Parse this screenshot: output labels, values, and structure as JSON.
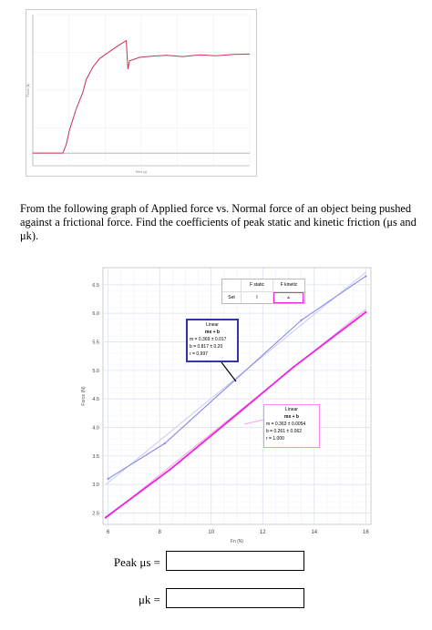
{
  "top_chart": {
    "x_axis_label": "Time (s)",
    "y_axis_label": "Force (N)"
  },
  "question": {
    "text": "From the following graph of Applied force vs. Normal force of an object being pushed against a frictional force.  Find the coefficients of peak static and kinetic friction (μs and μk)."
  },
  "legend": {
    "col1": "F static",
    "col2": "F kinetic",
    "row_label": "Set",
    "col1_marker": "I",
    "col2_marker": "▲",
    "col1_color": "#4444cc",
    "col2_color": "#ee22dd"
  },
  "fit_static": {
    "title": "Linear",
    "formula": "mx + b",
    "m": "m = 0.369 ± 0.017",
    "b": "b = 0.817 ± 0.20",
    "r": "r = 0.997",
    "border_color": "#3333aa"
  },
  "fit_kinetic": {
    "title": "Linear",
    "formula": "mx + b",
    "m": "m = 0.363 ± 0.0054",
    "b": "b = 0.261 ± 0.062",
    "r": "r = 1.000",
    "border_color": "#ff88ee"
  },
  "answers": {
    "static_label": "Peak μs =",
    "kinetic_label": "μk ="
  },
  "chart_data": [
    {
      "type": "line",
      "title": "",
      "xlabel": "Time (s)",
      "ylabel": "Force (N)",
      "description_of_shape": "force ramps from baseline to a peak then drops and plateaus",
      "series": [
        {
          "color": "#cc3355",
          "x": [
            0,
            0.3,
            0.6,
            0.9,
            1.0,
            1.1,
            1.3,
            1.5,
            1.6,
            1.8,
            2.0,
            2.3,
            2.6,
            2.8,
            2.85,
            2.9,
            3.2,
            3.6,
            4.0,
            4.5,
            5.0,
            5.5,
            6.0,
            6.5
          ],
          "y": [
            0.0,
            0.0,
            0.0,
            0.0,
            0.2,
            0.55,
            1.05,
            1.45,
            1.75,
            2.05,
            2.25,
            2.42,
            2.58,
            2.68,
            2.0,
            2.2,
            2.28,
            2.31,
            2.33,
            2.3,
            2.34,
            2.32,
            2.35,
            2.36
          ]
        }
      ],
      "xlim": [
        0,
        6.5
      ],
      "ylim": [
        -0.3,
        3.3
      ]
    },
    {
      "type": "line",
      "title": "",
      "xlabel": "Fn (N)",
      "ylabel": "Force (N)",
      "xlim": [
        5.8,
        16.2
      ],
      "ylim": [
        2.3,
        6.8
      ],
      "x_ticks": [
        6,
        8,
        10,
        12,
        14,
        16
      ],
      "y_ticks": [
        2.5,
        3.0,
        3.5,
        4.0,
        4.5,
        5.0,
        5.5,
        6.0,
        6.5
      ],
      "grid": true,
      "legend_position": "top-right",
      "series": [
        {
          "name": "F static",
          "color": "#8888ee",
          "x": [
            6,
            8.2,
            13.5,
            16
          ],
          "y": [
            3.1,
            3.72,
            5.88,
            6.65
          ]
        },
        {
          "name": "F kinetic",
          "color": "#ee22dd",
          "x": [
            5.9,
            8.4,
            10.6,
            13.2,
            16
          ],
          "y": [
            2.42,
            3.26,
            4.08,
            5.06,
            6.02
          ]
        }
      ],
      "fits": [
        {
          "series": "F static",
          "m": 0.369,
          "b": 0.817,
          "r": 0.997
        },
        {
          "series": "F kinetic",
          "m": 0.363,
          "b": 0.261,
          "r": 1.0
        }
      ]
    }
  ]
}
